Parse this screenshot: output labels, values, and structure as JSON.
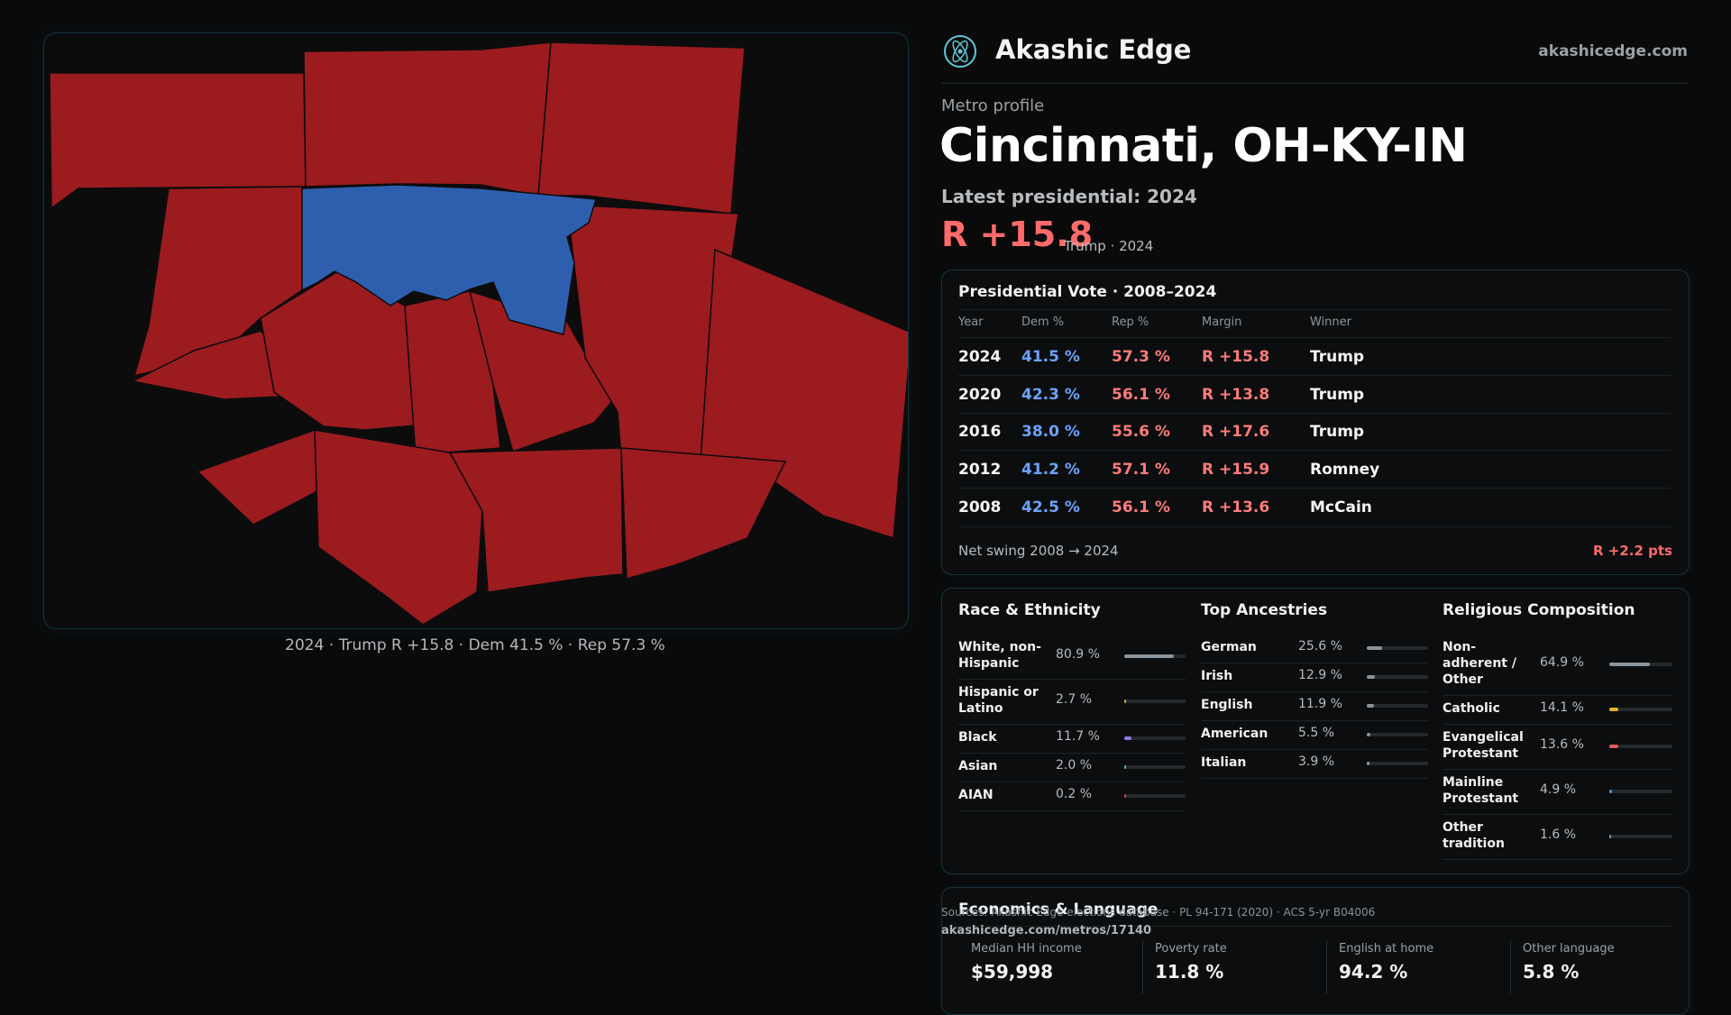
{
  "brand": {
    "name": "Akashic Edge",
    "link": "akashicedge.com",
    "logo_icon": "atom-logo-icon"
  },
  "profile": {
    "eyebrow": "Metro profile",
    "title": "Cincinnati, OH-KY-IN",
    "latest_label": "Latest presidential: 2024",
    "margin": "R +15.8",
    "margin_sub": "Trump · 2024"
  },
  "map": {
    "caption": "2024 · Trump R +15.8 · Dem 41.5 % · Rep 57.3 %",
    "colors": {
      "rep": "#9b1b1f",
      "dem": "#2e5fae"
    }
  },
  "vote_table": {
    "title": "Presidential Vote · 2008–2024",
    "headers": [
      "Year",
      "Dem %",
      "Rep %",
      "Margin",
      "Winner"
    ],
    "rows": [
      {
        "year": "2024",
        "dem": "41.5 %",
        "rep": "57.3 %",
        "margin": "R +15.8",
        "winner": "Trump"
      },
      {
        "year": "2020",
        "dem": "42.3 %",
        "rep": "56.1 %",
        "margin": "R +13.8",
        "winner": "Trump"
      },
      {
        "year": "2016",
        "dem": "38.0 %",
        "rep": "55.6 %",
        "margin": "R +17.6",
        "winner": "Trump"
      },
      {
        "year": "2012",
        "dem": "41.2 %",
        "rep": "57.1 %",
        "margin": "R +15.9",
        "winner": "Romney"
      },
      {
        "year": "2008",
        "dem": "42.5 %",
        "rep": "56.1 %",
        "margin": "R +13.6",
        "winner": "McCain"
      }
    ],
    "swing_label": "Net swing 2008 → 2024",
    "swing_value": "R +2.2 pts"
  },
  "race": {
    "title": "Race & Ethnicity",
    "rows": [
      {
        "label": "White, non-Hispanic",
        "value": "80.9 %",
        "fraction": 0.809,
        "color": "#8b949b"
      },
      {
        "label": "Hispanic or Latino",
        "value": "2.7 %",
        "fraction": 0.027,
        "color": "#e0a030"
      },
      {
        "label": "Black",
        "value": "11.7 %",
        "fraction": 0.117,
        "color": "#8a7be0"
      },
      {
        "label": "Asian",
        "value": "2.0 %",
        "fraction": 0.02,
        "color": "#3fbf9a"
      },
      {
        "label": "AIAN",
        "value": "0.2 %",
        "fraction": 0.002,
        "color": "#c0503a"
      }
    ]
  },
  "ancestry": {
    "title": "Top Ancestries",
    "rows": [
      {
        "label": "German",
        "value": "25.6 %",
        "fraction": 0.256,
        "color": "#8b949b"
      },
      {
        "label": "Irish",
        "value": "12.9 %",
        "fraction": 0.129,
        "color": "#8b949b"
      },
      {
        "label": "English",
        "value": "11.9 %",
        "fraction": 0.119,
        "color": "#8b949b"
      },
      {
        "label": "American",
        "value": "5.5 %",
        "fraction": 0.055,
        "color": "#8b949b"
      },
      {
        "label": "Italian",
        "value": "3.9 %",
        "fraction": 0.039,
        "color": "#8b949b"
      }
    ]
  },
  "religion": {
    "title": "Religious Composition",
    "rows": [
      {
        "label": "Non-adherent / Other",
        "value": "64.9 %",
        "fraction": 0.649,
        "color": "#8b949b"
      },
      {
        "label": "Catholic",
        "value": "14.1 %",
        "fraction": 0.141,
        "color": "#e0b030"
      },
      {
        "label": "Evangelical Protestant",
        "value": "13.6 %",
        "fraction": 0.136,
        "color": "#e05a5a"
      },
      {
        "label": "Mainline Protestant",
        "value": "4.9 %",
        "fraction": 0.049,
        "color": "#4a8fe0"
      },
      {
        "label": "Other tradition",
        "value": "1.6 %",
        "fraction": 0.016,
        "color": "#8b949b"
      }
    ]
  },
  "economics": {
    "title": "Economics & Language",
    "cells": [
      {
        "label": "Median HH income",
        "value": "$59,998"
      },
      {
        "label": "Poverty rate",
        "value": "11.8 %"
      },
      {
        "label": "English at home",
        "value": "94.2 %"
      },
      {
        "label": "Other language",
        "value": "5.8 %"
      }
    ]
  },
  "footer": {
    "sources": "Sources: Akashic Edge elections database · PL 94-171 (2020) · ACS 5-yr B04006",
    "permalink": "akashicedge.com/metros/17140"
  }
}
